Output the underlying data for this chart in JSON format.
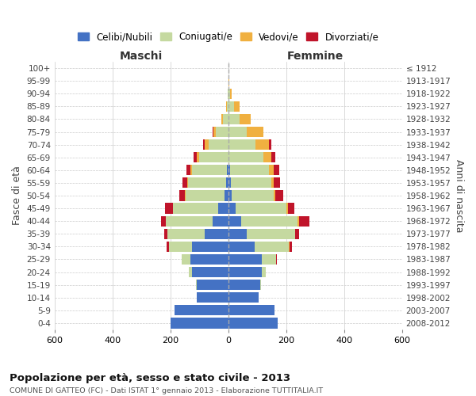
{
  "age_groups": [
    "0-4",
    "5-9",
    "10-14",
    "15-19",
    "20-24",
    "25-29",
    "30-34",
    "35-39",
    "40-44",
    "45-49",
    "50-54",
    "55-59",
    "60-64",
    "65-69",
    "70-74",
    "75-79",
    "80-84",
    "85-89",
    "90-94",
    "95-99",
    "100+"
  ],
  "birth_years": [
    "2008-2012",
    "2003-2007",
    "1998-2002",
    "1993-1997",
    "1988-1992",
    "1983-1987",
    "1978-1982",
    "1973-1977",
    "1968-1972",
    "1963-1967",
    "1958-1962",
    "1953-1957",
    "1948-1952",
    "1943-1947",
    "1938-1942",
    "1933-1937",
    "1928-1932",
    "1923-1927",
    "1918-1922",
    "1913-1917",
    "≤ 1912"
  ],
  "males": {
    "celibe": [
      200,
      185,
      110,
      110,
      125,
      130,
      125,
      80,
      55,
      35,
      12,
      8,
      5,
      0,
      0,
      0,
      0,
      0,
      0,
      0,
      0
    ],
    "coniugato": [
      0,
      0,
      0,
      2,
      10,
      30,
      80,
      130,
      160,
      155,
      135,
      130,
      120,
      100,
      68,
      42,
      18,
      5,
      2,
      0,
      0
    ],
    "vedovo": [
      0,
      0,
      0,
      0,
      0,
      0,
      0,
      0,
      1,
      2,
      2,
      3,
      5,
      8,
      12,
      10,
      5,
      2,
      0,
      0,
      0
    ],
    "divorziato": [
      0,
      0,
      0,
      0,
      0,
      2,
      8,
      12,
      15,
      25,
      20,
      18,
      15,
      12,
      8,
      2,
      0,
      0,
      0,
      0,
      0
    ]
  },
  "females": {
    "nubile": [
      170,
      160,
      105,
      110,
      115,
      115,
      90,
      65,
      45,
      25,
      12,
      8,
      5,
      0,
      0,
      0,
      0,
      0,
      0,
      0,
      0
    ],
    "coniugata": [
      0,
      0,
      0,
      3,
      15,
      50,
      120,
      165,
      195,
      175,
      145,
      140,
      135,
      120,
      95,
      65,
      38,
      20,
      5,
      2,
      0
    ],
    "vedova": [
      0,
      0,
      0,
      0,
      0,
      0,
      1,
      2,
      4,
      5,
      6,
      10,
      18,
      28,
      45,
      55,
      40,
      20,
      8,
      2,
      1
    ],
    "divorziata": [
      0,
      0,
      0,
      0,
      0,
      2,
      8,
      12,
      35,
      22,
      28,
      22,
      18,
      15,
      10,
      2,
      0,
      0,
      0,
      0,
      0
    ]
  },
  "color_celibe": "#4472c4",
  "color_coniugato": "#c5d9a0",
  "color_vedovo": "#f0b040",
  "color_divorziato": "#c0142a",
  "xlim": 600,
  "title": "Popolazione per età, sesso e stato civile - 2013",
  "subtitle": "COMUNE DI GATTEO (FC) - Dati ISTAT 1° gennaio 2013 - Elaborazione TUTTITALIA.IT",
  "ylabel_left": "Fasce di età",
  "ylabel_right": "Anni di nascita",
  "xlabel_maschi": "Maschi",
  "xlabel_femmine": "Femmine",
  "background_color": "#ffffff",
  "grid_color": "#cccccc"
}
